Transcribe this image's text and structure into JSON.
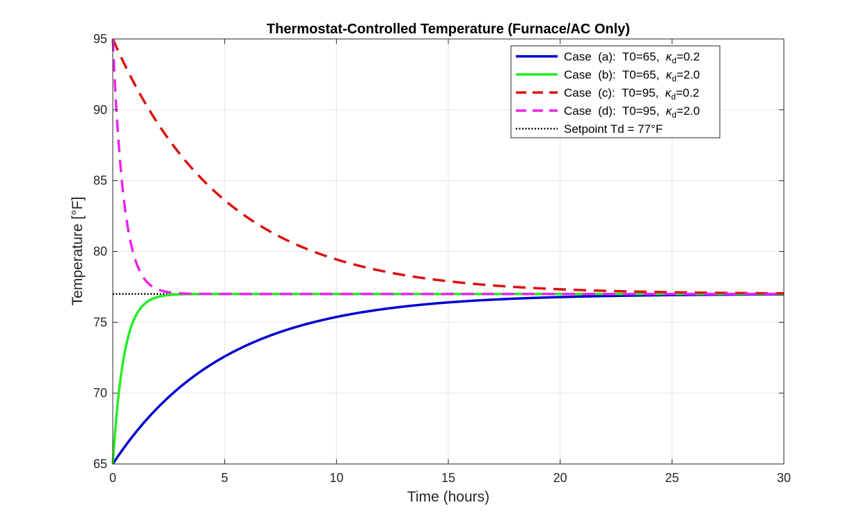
{
  "chart_data": {
    "type": "line",
    "title": "Thermostat-Controlled Temperature (Furnace/AC Only)",
    "xlabel": "Time (hours)",
    "ylabel": "Temperature [°F]",
    "xlim": [
      0,
      30
    ],
    "ylim": [
      65,
      95
    ],
    "xticks": [
      0,
      5,
      10,
      15,
      20,
      25,
      30
    ],
    "yticks": [
      65,
      70,
      75,
      80,
      85,
      90,
      95
    ],
    "grid": true,
    "legend_position": "top-right",
    "setpoint": {
      "value": 77,
      "label": "Setpoint Td = 77°F",
      "color": "#000000",
      "style": "dotted"
    },
    "series": [
      {
        "name": "Case (a): T0=65, κd=0.2",
        "legend": {
          "prefix": "Case  (a):  T0=65,  ",
          "kappa": "κ",
          "sub": "d",
          "suffix": "=0.2"
        },
        "T0": 65,
        "k": 0.2,
        "color": "#0000d0",
        "style": "solid",
        "x": [
          0,
          0.5,
          1,
          2,
          3,
          4,
          5,
          6,
          7,
          8,
          10,
          12,
          15,
          20,
          25,
          30
        ],
        "values": [
          65,
          66.14,
          67.17,
          68.96,
          70.41,
          71.61,
          72.58,
          73.39,
          74.04,
          74.58,
          75.38,
          75.91,
          76.4,
          76.78,
          76.92,
          76.97
        ]
      },
      {
        "name": "Case (b): T0=65, κd=2.0",
        "legend": {
          "prefix": "Case  (b):  T0=65,  ",
          "kappa": "κ",
          "sub": "d",
          "suffix": "=2.0"
        },
        "T0": 65,
        "k": 2.0,
        "color": "#22ee22",
        "style": "solid",
        "x": [
          0,
          0.1,
          0.2,
          0.3,
          0.5,
          0.75,
          1,
          1.5,
          2,
          2.5,
          3,
          5,
          10,
          20,
          30
        ],
        "values": [
          65,
          67.17,
          68.96,
          70.41,
          72.59,
          74.32,
          75.38,
          76.4,
          76.78,
          76.92,
          76.97,
          77.0,
          77.0,
          77.0,
          77.0
        ]
      },
      {
        "name": "Case (c): T0=95, κd=0.2",
        "legend": {
          "prefix": "Case  (c):  T0=95,  ",
          "kappa": "κ",
          "sub": "d",
          "suffix": "=0.2"
        },
        "T0": 95,
        "k": 0.2,
        "color": "#dd1111",
        "style": "dashed",
        "x": [
          0,
          1,
          2,
          3,
          4,
          5,
          6,
          7,
          8,
          10,
          12,
          15,
          20,
          25,
          30
        ],
        "values": [
          95,
          91.74,
          89.07,
          86.88,
          85.09,
          83.62,
          82.42,
          81.44,
          80.63,
          79.44,
          78.63,
          77.9,
          77.33,
          77.12,
          77.04
        ]
      },
      {
        "name": "Case (d): T0=95, κd=2.0",
        "legend": {
          "prefix": "Case  (d):  T0=95,  ",
          "kappa": "κ",
          "sub": "d",
          "suffix": "=2.0"
        },
        "T0": 95,
        "k": 2.0,
        "color": "#ee22ee",
        "style": "dashed",
        "x": [
          0,
          0.1,
          0.2,
          0.3,
          0.5,
          0.75,
          1,
          1.5,
          2,
          2.5,
          3,
          5,
          10,
          20,
          30
        ],
        "values": [
          95,
          91.74,
          89.07,
          86.88,
          83.62,
          81.02,
          79.44,
          77.9,
          77.33,
          77.12,
          77.04,
          77.0,
          77.0,
          77.0,
          77.0
        ]
      }
    ]
  }
}
